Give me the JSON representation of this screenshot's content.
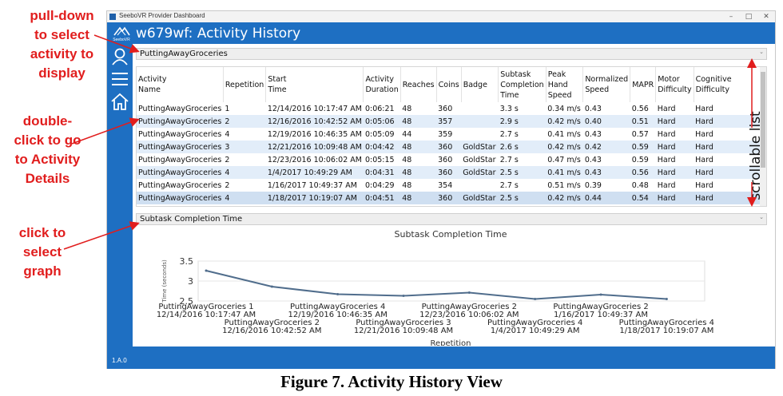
{
  "window": {
    "title": "SeeboVR Provider Dashboard",
    "min_glyph": "–",
    "max_glyph": "□",
    "close_glyph": "✕"
  },
  "logo_text": "SeeboVR",
  "page_title": "w679wf: Activity History",
  "version": "1.A.0",
  "colors": {
    "accent": "#1e6fc2",
    "annotation": "#e11d1d",
    "row_alt": "#e2edf9"
  },
  "nav": {
    "icons": [
      "user-icon",
      "hamburger-menu-icon",
      "home-icon"
    ]
  },
  "activity_select": {
    "value": "PuttingAwayGroceries"
  },
  "graph_select": {
    "value": "Subtask Completion Time"
  },
  "table": {
    "columns": [
      [
        "Activity",
        "Name"
      ],
      [
        "Repetition"
      ],
      [
        "Start",
        "Time"
      ],
      [
        "Activity",
        "Duration"
      ],
      [
        "Reaches"
      ],
      [
        "Coins"
      ],
      [
        "Badge"
      ],
      [
        "Subtask",
        "Completion",
        "Time"
      ],
      [
        "Peak",
        "Hand",
        "Speed"
      ],
      [
        "Normalized",
        "Speed"
      ],
      [
        "MAPR"
      ],
      [
        "Motor",
        "Difficulty"
      ],
      [
        "Cognitive",
        "Difficulty"
      ]
    ],
    "rows": [
      [
        "PuttingAwayGroceries",
        "1",
        "12/14/2016 10:17:47 AM",
        "0:06:21",
        "48",
        "360",
        "",
        "3.3 s",
        "0.34 m/s",
        "0.43",
        "0.56",
        "Hard",
        "Hard"
      ],
      [
        "PuttingAwayGroceries",
        "2",
        "12/16/2016 10:42:52 AM",
        "0:05:06",
        "48",
        "357",
        "",
        "2.9 s",
        "0.42 m/s",
        "0.40",
        "0.51",
        "Hard",
        "Hard"
      ],
      [
        "PuttingAwayGroceries",
        "4",
        "12/19/2016 10:46:35 AM",
        "0:05:09",
        "44",
        "359",
        "",
        "2.7 s",
        "0.41 m/s",
        "0.43",
        "0.57",
        "Hard",
        "Hard"
      ],
      [
        "PuttingAwayGroceries",
        "3",
        "12/21/2016 10:09:48 AM",
        "0:04:42",
        "48",
        "360",
        "GoldStar",
        "2.6 s",
        "0.42 m/s",
        "0.42",
        "0.59",
        "Hard",
        "Hard"
      ],
      [
        "PuttingAwayGroceries",
        "2",
        "12/23/2016 10:06:02 AM",
        "0:05:15",
        "48",
        "360",
        "GoldStar",
        "2.7 s",
        "0.47 m/s",
        "0.43",
        "0.59",
        "Hard",
        "Hard"
      ],
      [
        "PuttingAwayGroceries",
        "4",
        "1/4/2017 10:49:29 AM",
        "0:04:31",
        "48",
        "360",
        "GoldStar",
        "2.5 s",
        "0.41 m/s",
        "0.43",
        "0.56",
        "Hard",
        "Hard"
      ],
      [
        "PuttingAwayGroceries",
        "2",
        "1/16/2017 10:49:37 AM",
        "0:04:29",
        "48",
        "354",
        "",
        "2.7 s",
        "0.51 m/s",
        "0.39",
        "0.48",
        "Hard",
        "Hard"
      ],
      [
        "PuttingAwayGroceries",
        "4",
        "1/18/2017 10:19:07 AM",
        "0:04:51",
        "48",
        "360",
        "GoldStar",
        "2.5 s",
        "0.42 m/s",
        "0.44",
        "0.54",
        "Hard",
        "Hard"
      ]
    ]
  },
  "chart_data": {
    "type": "line",
    "title": "Subtask Completion Time",
    "xlabel": "Repetition",
    "ylabel": "Time (seconds)",
    "ylim": [
      2.5,
      3.5
    ],
    "yticks": [
      "3.5",
      "3",
      "2.5"
    ],
    "categories": [
      [
        "PuttingAwayGroceries 1",
        "12/14/2016 10:17:47 AM"
      ],
      [
        "PuttingAwayGroceries 2",
        "12/16/2016 10:42:52 AM"
      ],
      [
        "PuttingAwayGroceries 4",
        "12/19/2016 10:46:35 AM"
      ],
      [
        "PuttingAwayGroceries 3",
        "12/21/2016 10:09:48 AM"
      ],
      [
        "PuttingAwayGroceries 2",
        "12/23/2016 10:06:02 AM"
      ],
      [
        "PuttingAwayGroceries 4",
        "1/4/2017 10:49:29 AM"
      ],
      [
        "PuttingAwayGroceries 2",
        "1/16/2017 10:49:37 AM"
      ],
      [
        "PuttingAwayGroceries 4",
        "1/18/2017 10:19:07 AM"
      ]
    ],
    "values": [
      3.26,
      2.86,
      2.67,
      2.63,
      2.71,
      2.55,
      2.66,
      2.55
    ],
    "line_color": "#506d8c"
  },
  "annotations": {
    "pull_down": "pull-down\nto select\nactivity to\ndisplay",
    "double_click": "double-\nclick to go\nto Activity\nDetails",
    "click_graph": "click to\nselect\ngraph",
    "scrollable": "scrollable list"
  },
  "caption": "Figure 7. Activity History View"
}
